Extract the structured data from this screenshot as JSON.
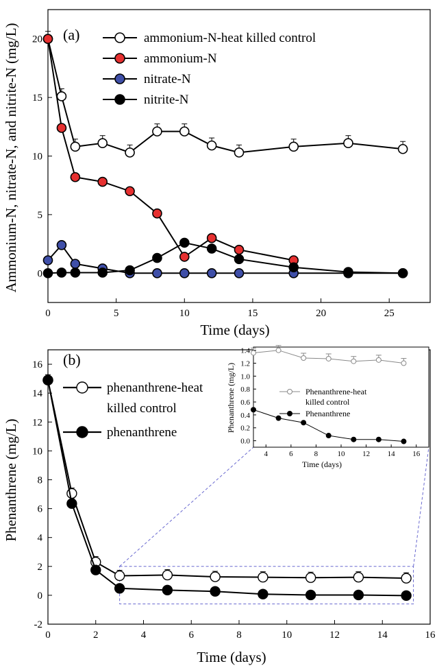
{
  "chart_data": [
    {
      "type": "line",
      "panel_label": "(a)",
      "xlabel": "Time (days)",
      "ylabel": "Ammonium-N, nitrate-N, and nitrite-N (mg/L)",
      "xlim": [
        0,
        28
      ],
      "ylim": [
        -2.5,
        22.5
      ],
      "xticks": [
        0,
        5,
        10,
        15,
        20,
        25
      ],
      "yticks": [
        0,
        5,
        10,
        15,
        20
      ],
      "grid": false,
      "legend_position": "top-right",
      "series": [
        {
          "name": "ammonium-N-heat killed control",
          "color": "#ffffff",
          "edge": "#000000",
          "error_bars": true,
          "x": [
            0,
            1,
            2,
            4,
            6,
            8,
            10,
            12,
            14,
            18,
            22,
            26
          ],
          "y": [
            20.0,
            15.1,
            10.8,
            11.1,
            10.3,
            12.1,
            12.1,
            10.9,
            10.3,
            10.8,
            11.1,
            10.6
          ]
        },
        {
          "name": "ammonium-N",
          "color": "#e63030",
          "edge": "#000000",
          "error_bars": false,
          "x": [
            0,
            1,
            2,
            4,
            6,
            8,
            10,
            12,
            14,
            18
          ],
          "y": [
            20.0,
            12.4,
            8.2,
            7.8,
            7.0,
            5.1,
            1.4,
            3.0,
            2.0,
            1.1
          ]
        },
        {
          "name": "nitrate-N",
          "color": "#3f4fa8",
          "edge": "#000000",
          "error_bars": false,
          "x": [
            0,
            1,
            2,
            4,
            6,
            8,
            10,
            12,
            14,
            18,
            22,
            26
          ],
          "y": [
            1.1,
            2.4,
            0.8,
            0.4,
            0.0,
            0.0,
            0.0,
            0.0,
            0.0,
            0.0,
            0.0,
            0.0
          ]
        },
        {
          "name": "nitrite-N",
          "color": "#000000",
          "edge": "#000000",
          "error_bars": false,
          "x": [
            0,
            1,
            2,
            4,
            6,
            8,
            10,
            12,
            14,
            18,
            22,
            26
          ],
          "y": [
            0.0,
            0.05,
            0.05,
            0.05,
            0.25,
            1.3,
            2.6,
            2.1,
            1.2,
            0.5,
            0.1,
            0.0
          ]
        }
      ]
    },
    {
      "type": "line",
      "panel_label": "(b)",
      "xlabel": "Time (days)",
      "ylabel": "Phenanthrene (mg/L)",
      "xlim": [
        0,
        16
      ],
      "ylim": [
        -2,
        17
      ],
      "xticks": [
        0,
        2,
        4,
        6,
        8,
        10,
        12,
        14,
        16
      ],
      "yticks": [
        -2,
        0,
        2,
        4,
        6,
        8,
        10,
        12,
        14,
        16
      ],
      "grid": false,
      "legend_position": "top-left",
      "legend_lines": [
        [
          "phenanthrene-heat",
          "killed control"
        ],
        [
          "phenanthrene"
        ]
      ],
      "series": [
        {
          "name": "phenanthrene-heat killed control",
          "color": "#ffffff",
          "edge": "#000000",
          "error_bars": true,
          "x": [
            0,
            1,
            2,
            3,
            5,
            7,
            9,
            11,
            13,
            15
          ],
          "y": [
            14.9,
            7.05,
            2.3,
            1.35,
            1.4,
            1.28,
            1.25,
            1.22,
            1.25,
            1.18
          ]
        },
        {
          "name": "phenanthrene",
          "color": "#000000",
          "edge": "#000000",
          "error_bars": false,
          "x": [
            0,
            1,
            2,
            3,
            5,
            7,
            9,
            11,
            13,
            15
          ],
          "y": [
            14.9,
            6.35,
            1.75,
            0.48,
            0.36,
            0.27,
            0.08,
            0.02,
            0.02,
            -0.02
          ]
        }
      ],
      "zoom_box": {
        "x": [
          3,
          15.3
        ],
        "y": [
          -0.6,
          2.0
        ]
      },
      "inset": {
        "xlabel": "Time (days)",
        "ylabel": "Phenanthrene (mg/L)",
        "xlim": [
          3,
          17
        ],
        "ylim": [
          -0.1,
          1.45
        ],
        "xticks": [
          4,
          6,
          8,
          10,
          12,
          14,
          16
        ],
        "yticks": [
          0.0,
          0.2,
          0.4,
          0.6,
          0.8,
          1.0,
          1.2,
          1.4
        ],
        "legend_lines": [
          [
            "Phenanthrene-heat",
            "killed control"
          ],
          [
            "Phenanthrene"
          ]
        ],
        "series": [
          {
            "name": "Phenanthrene-heat killed control",
            "color": "#ffffff",
            "edge": "#888888",
            "error_bars": true,
            "x": [
              3,
              5,
              7,
              9,
              11,
              13,
              15
            ],
            "y": [
              1.36,
              1.4,
              1.28,
              1.27,
              1.23,
              1.25,
              1.2
            ]
          },
          {
            "name": "Phenanthrene",
            "color": "#000000",
            "edge": "#000000",
            "error_bars": false,
            "x": [
              3,
              5,
              7,
              9,
              11,
              13,
              15
            ],
            "y": [
              0.48,
              0.35,
              0.28,
              0.08,
              0.02,
              0.02,
              -0.01
            ]
          }
        ]
      }
    }
  ]
}
